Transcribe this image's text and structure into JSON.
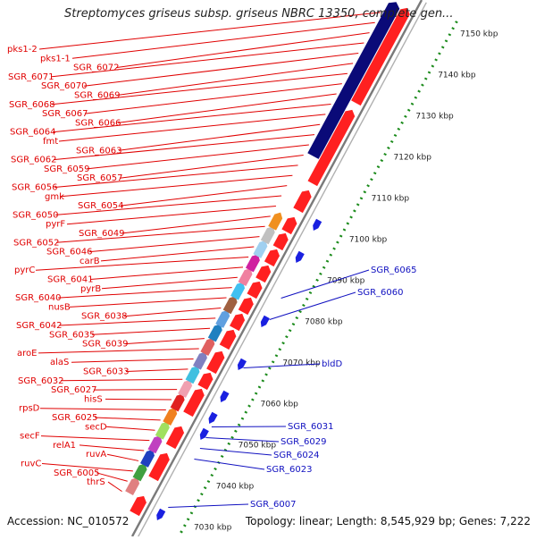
{
  "title": "Streptomyces griseus subsp. griseus NBRC 13350, complete gen...",
  "footer": {
    "accession": "Accession: NC_010572",
    "summary": "Topology: linear; Length: 8,545,929 bp; Genes: 7,222"
  },
  "colors": {
    "forward_gene": "#ff2020",
    "reverse_gene": "#1a20e0",
    "forward_label": "#e00000",
    "reverse_label": "#1010c0",
    "backbone": "#7a7a7a",
    "ruler_dots": "#1a8a1a",
    "pks_block": "#0a0a78"
  },
  "ruler": {
    "unit": "kbp",
    "ticks": [
      "7030 kbp",
      "7040 kbp",
      "7050 kbp",
      "7060 kbp",
      "7070 kbp",
      "7080 kbp",
      "7090 kbp",
      "7100 kbp",
      "7110 kbp",
      "7120 kbp",
      "7130 kbp",
      "7140 kbp",
      "7150 kbp"
    ]
  },
  "forward_labels": [
    "pks1-2",
    "pks1-1",
    "SGR_6072",
    "SGR_6071",
    "SGR_6070",
    "SGR_6069",
    "SGR_6068",
    "SGR_6067",
    "SGR_6066",
    "SGR_6064",
    "fmt",
    "SGR_6063",
    "SGR_6062",
    "SGR_6059",
    "SGR_6057",
    "SGR_6056",
    "gmk",
    "SGR_6054",
    "SGR_6050",
    "pyrF",
    "SGR_6049",
    "SGR_6052",
    "SGR_6046",
    "carB",
    "pyrC",
    "SGR_6041",
    "pyrB",
    "SGR_6040",
    "nusB",
    "SGR_6038",
    "SGR_6042",
    "SGR_6035",
    "SGR_6039",
    "aroE",
    "alaS",
    "SGR_6033",
    "SGR_6032",
    "SGR_6027",
    "hisS",
    "rpsD",
    "SGR_6025",
    "secD",
    "secF",
    "relA1",
    "ruvA",
    "ruvC",
    "SGR_6005",
    "thrS"
  ],
  "reverse_labels": [
    "SGR_6065",
    "SGR_6060",
    "bldD",
    "SGR_6031",
    "SGR_6029",
    "SGR_6024",
    "SGR_6023",
    "SGR_6007"
  ]
}
